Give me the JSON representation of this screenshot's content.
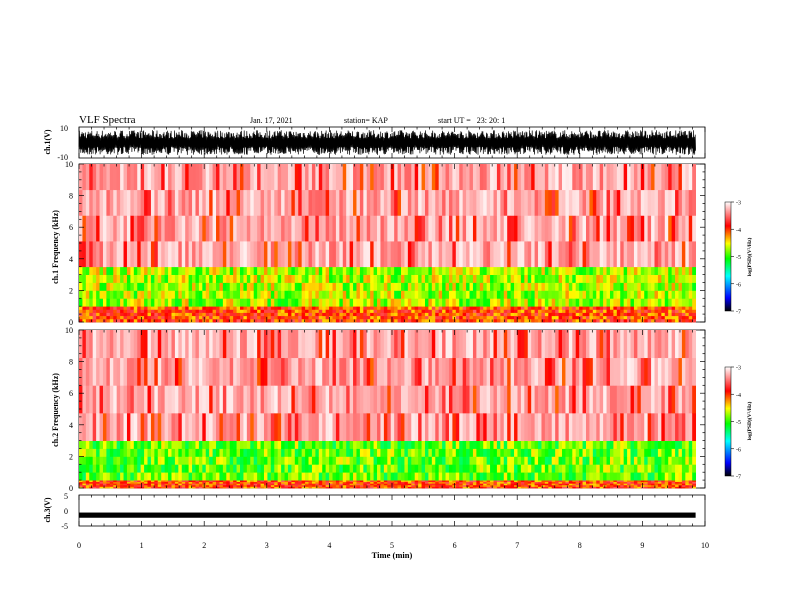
{
  "header": {
    "title": "VLF Spectra",
    "date": "Jan. 17, 2021",
    "station": "station= KAP",
    "start": "start UT =   23: 20: 1"
  },
  "chart_data": [
    {
      "type": "line",
      "name": "ch1-waveform",
      "ylabel": "ch.1(V)",
      "xlim": [
        0,
        10
      ],
      "ylim": [
        -10,
        10
      ],
      "yticks": [
        "10",
        "-10"
      ],
      "amplitude_range": [
        -8,
        8
      ],
      "color": "#000000"
    },
    {
      "type": "heatmap",
      "name": "ch1-spectrogram",
      "ylabel": "ch.1 Frequency (kHz)",
      "xlim": [
        0,
        10
      ],
      "ylim": [
        0,
        10
      ],
      "yticks": [
        "0",
        "2",
        "4",
        "6",
        "8",
        "10"
      ],
      "data_end_min": 9.85,
      "colorbar": {
        "label": "log(PSD)(V²/Hz)",
        "range": [
          -7,
          -3
        ],
        "ticks": [
          "-3",
          "-4",
          "-5",
          "-6",
          "-7"
        ]
      },
      "intensity_profile": [
        {
          "freq_khz": [
            0,
            1.0
          ],
          "log_psd": -4.0
        },
        {
          "freq_khz": [
            1.0,
            3.5
          ],
          "log_psd": -4.7
        },
        {
          "freq_khz": [
            3.5,
            10
          ],
          "log_psd": -3.3
        }
      ]
    },
    {
      "type": "heatmap",
      "name": "ch2-spectrogram",
      "ylabel": "ch.2 Frequency (kHz)",
      "xlim": [
        0,
        10
      ],
      "ylim": [
        0,
        10
      ],
      "yticks": [
        "0",
        "2",
        "4",
        "6",
        "8",
        "10"
      ],
      "data_end_min": 9.85,
      "colorbar": {
        "label": "log(PSD)(V²/Hz)",
        "range": [
          -7,
          -3
        ],
        "ticks": [
          "-3",
          "-4",
          "-5",
          "-6",
          "-7"
        ]
      },
      "intensity_profile": [
        {
          "freq_khz": [
            0,
            0.5
          ],
          "log_psd": -4.0
        },
        {
          "freq_khz": [
            0.5,
            3.0
          ],
          "log_psd": -4.9
        },
        {
          "freq_khz": [
            3.0,
            10
          ],
          "log_psd": -3.3
        }
      ]
    },
    {
      "type": "line",
      "name": "ch3-waveform",
      "ylabel": "ch.3(V)",
      "xlim": [
        0,
        10
      ],
      "ylim": [
        -5,
        5
      ],
      "yticks": [
        "5",
        "0",
        "-5"
      ],
      "baseline": -1.5,
      "color": "#000000"
    }
  ],
  "x_axis": {
    "label": "Time (min)",
    "ticks": [
      "0",
      "1",
      "2",
      "3",
      "4",
      "5",
      "6",
      "7",
      "8",
      "9",
      "10"
    ]
  },
  "colors": {
    "background": "#ffffff",
    "colorscale": [
      "#000000",
      "#0000ff",
      "#00ffff",
      "#00ff00",
      "#ffff00",
      "#ff0000",
      "#ffffff"
    ]
  }
}
